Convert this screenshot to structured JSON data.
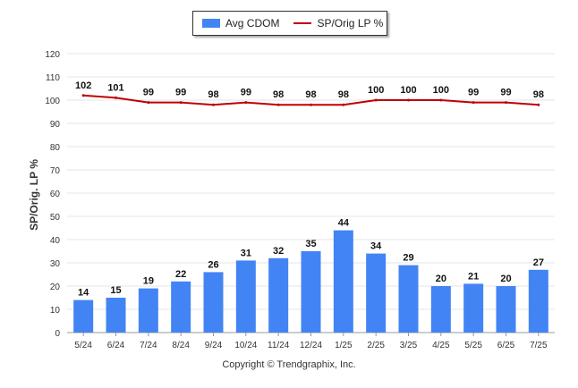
{
  "chart_data": {
    "type": "bar",
    "categories": [
      "5/24",
      "6/24",
      "7/24",
      "8/24",
      "9/24",
      "10/24",
      "11/24",
      "12/24",
      "1/25",
      "2/25",
      "3/25",
      "4/25",
      "5/25",
      "6/25",
      "7/25"
    ],
    "series": [
      {
        "name": "Avg CDOM",
        "kind": "bar",
        "color": "#4384F4",
        "values": [
          14,
          15,
          19,
          22,
          26,
          31,
          32,
          35,
          44,
          34,
          29,
          20,
          21,
          20,
          27
        ]
      },
      {
        "name": "SP/Orig LP %",
        "kind": "line",
        "color": "#C00000",
        "values": [
          102,
          101,
          99,
          99,
          98,
          99,
          98,
          98,
          98,
          100,
          100,
          100,
          99,
          99,
          98
        ]
      }
    ],
    "ylabel": "SP/Orig. LP %",
    "ylim": [
      0,
      120
    ],
    "yticks": [
      0,
      10,
      20,
      30,
      40,
      50,
      60,
      70,
      80,
      90,
      100,
      110,
      120
    ],
    "grid": true,
    "legend": "top-center",
    "data_labels": true
  },
  "legend": {
    "bar_label": "Avg CDOM",
    "line_label": "SP/Orig LP %"
  },
  "copyright": "Copyright © Trendgraphix, Inc."
}
